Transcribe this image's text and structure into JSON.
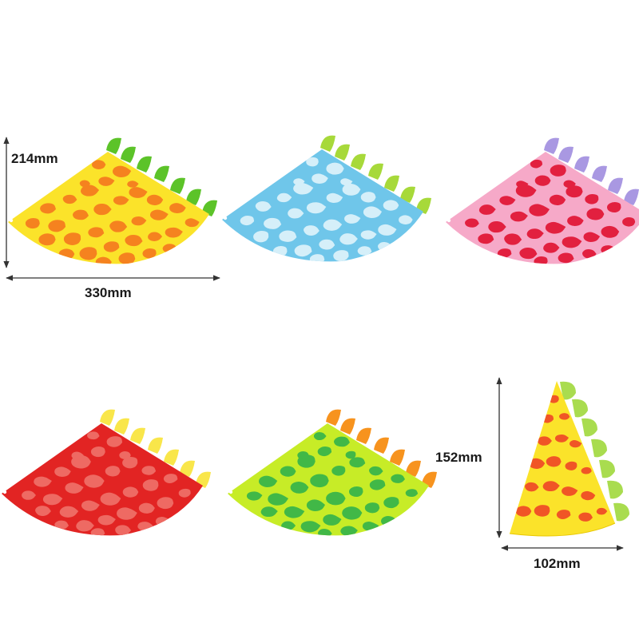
{
  "dimensions": {
    "flat_height": "214mm",
    "flat_width": "330mm",
    "cone_height": "152mm",
    "cone_width": "102mm"
  },
  "hats": [
    {
      "id": "yellow",
      "base": "#fbe32a",
      "spots": "#f5821f",
      "spikes": "#5cc329"
    },
    {
      "id": "blue",
      "base": "#6fc6ea",
      "spots": "#d5eff9",
      "spikes": "#a7d93a"
    },
    {
      "id": "pink",
      "base": "#f6a9c8",
      "spots": "#e2203f",
      "spikes": "#a998e2"
    },
    {
      "id": "red",
      "base": "#e22423",
      "spots": "#ee6a63",
      "spikes": "#f9e64a"
    },
    {
      "id": "green",
      "base": "#c7ec27",
      "spots": "#41b847",
      "spikes": "#f7931e"
    }
  ],
  "cone": {
    "base": "#fbe32a",
    "spots": "#f05526",
    "spikes": "#a9dc4f"
  }
}
